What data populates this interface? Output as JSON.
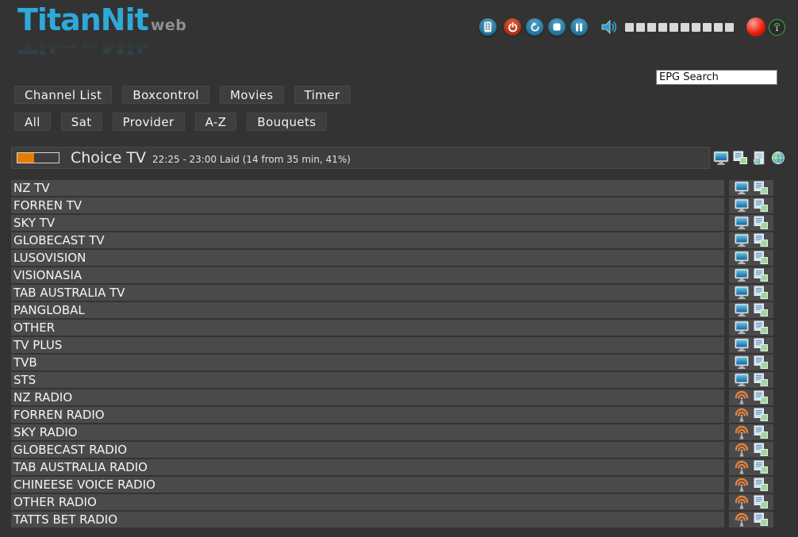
{
  "app": {
    "name": "TitanNit",
    "variant": "web"
  },
  "toolbar": {
    "buttons": [
      {
        "id": "remote",
        "icon": "remote-control-icon"
      },
      {
        "id": "power",
        "icon": "power-icon"
      },
      {
        "id": "refresh",
        "icon": "refresh-icon"
      },
      {
        "id": "stop",
        "icon": "stop-icon"
      },
      {
        "id": "pause",
        "icon": "pause-icon"
      }
    ],
    "volume": {
      "icon": "speaker-icon",
      "segments": 10,
      "active_segments": 0
    },
    "record_indicator_color": "#ee1e0e",
    "signal_color": "#3fae3f"
  },
  "search": {
    "value": "EPG Search"
  },
  "nav": {
    "items": [
      "Channel List",
      "Boxcontrol",
      "Movies",
      "Timer"
    ]
  },
  "filters": {
    "items": [
      "All",
      "Sat",
      "Provider",
      "A-Z",
      "Bouquets"
    ]
  },
  "now_playing": {
    "channel": "Choice TV",
    "epg_line": "22:25 - 23:00 Laid (14 from 35 min, 41%)",
    "progress_percent": 41,
    "progress_color": "#e67d00",
    "actions": [
      "tv-screen-icon",
      "epg-windows-icon",
      "web-epg-icon",
      "globe-icon"
    ]
  },
  "channels": [
    {
      "name": "NZ TV",
      "type": "tv"
    },
    {
      "name": "FORREN TV",
      "type": "tv"
    },
    {
      "name": "SKY TV",
      "type": "tv"
    },
    {
      "name": "GLOBECAST TV",
      "type": "tv"
    },
    {
      "name": "LUSOVISION",
      "type": "tv"
    },
    {
      "name": "VISIONASIA",
      "type": "tv"
    },
    {
      "name": "TAB AUSTRALIA TV",
      "type": "tv"
    },
    {
      "name": "PANGLOBAL",
      "type": "tv"
    },
    {
      "name": "OTHER",
      "type": "tv"
    },
    {
      "name": "TV PLUS",
      "type": "tv"
    },
    {
      "name": "TVB",
      "type": "tv"
    },
    {
      "name": "STS",
      "type": "tv"
    },
    {
      "name": "NZ RADIO",
      "type": "radio"
    },
    {
      "name": "FORREN RADIO",
      "type": "radio"
    },
    {
      "name": "SKY RADIO",
      "type": "radio"
    },
    {
      "name": "GLOBECAST RADIO",
      "type": "radio"
    },
    {
      "name": "TAB AUSTRALIA RADIO",
      "type": "radio"
    },
    {
      "name": "CHINEESE VOICE RADIO",
      "type": "radio"
    },
    {
      "name": "OTHER RADIO",
      "type": "radio"
    },
    {
      "name": "TATTS BET RADIO",
      "type": "radio"
    }
  ],
  "colors": {
    "background": "#333333",
    "row": "#4a4a4a",
    "button": "#3e3e3e",
    "logo_blue": "#2da9da",
    "accent_orange": "#e67d00"
  }
}
